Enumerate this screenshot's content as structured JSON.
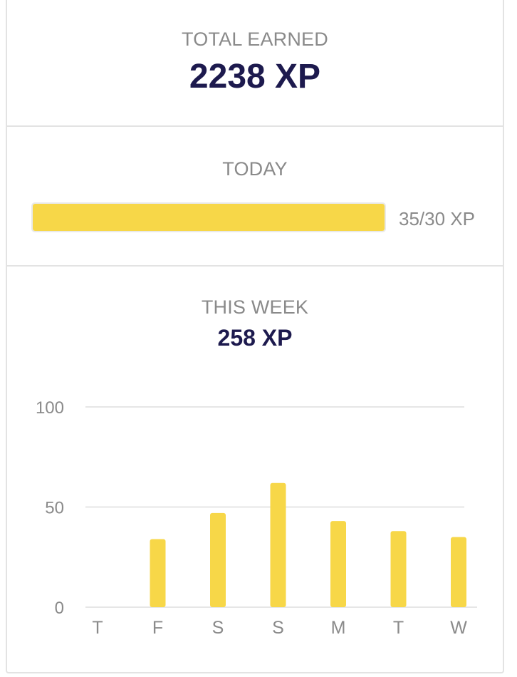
{
  "total": {
    "label": "TOTAL EARNED",
    "value": "2238 XP"
  },
  "today": {
    "label": "TODAY",
    "progress_text": "35/30 XP",
    "progress_fraction": 1.0,
    "bar_color": "#f7d748"
  },
  "week": {
    "label": "THIS WEEK",
    "value": "258 XP"
  },
  "chart_data": {
    "type": "bar",
    "categories": [
      "T",
      "F",
      "S",
      "S",
      "M",
      "T",
      "W"
    ],
    "values": [
      0,
      34,
      47,
      62,
      43,
      38,
      35
    ],
    "ylim": [
      0,
      100
    ],
    "yticks": [
      "0",
      "50",
      "100"
    ],
    "grid": true,
    "bar_color": "#f7d748",
    "grid_color": "#e6e6e6",
    "tick_color": "#8a8a8a"
  }
}
